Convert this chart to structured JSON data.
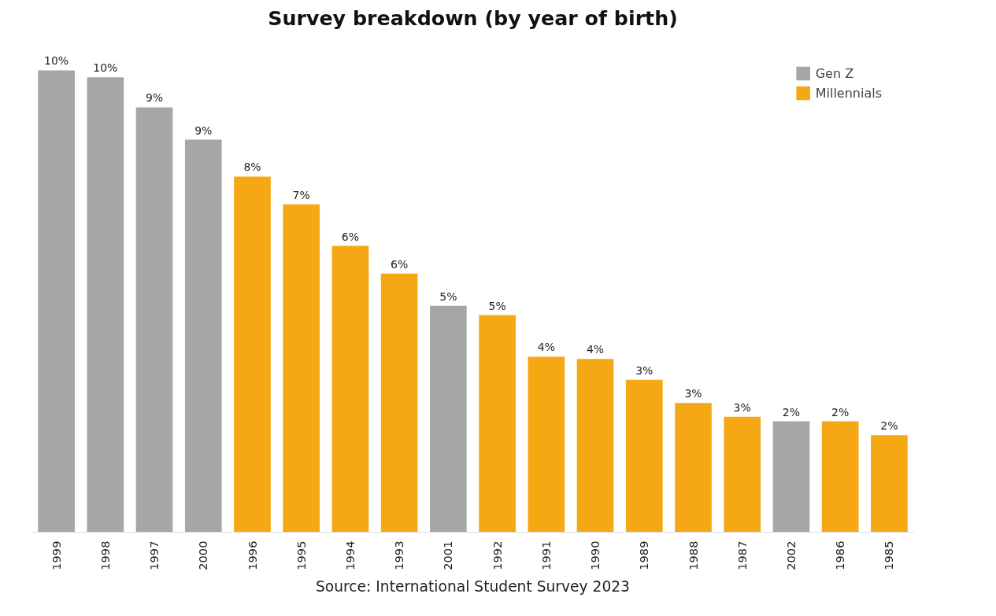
{
  "chart_data": {
    "type": "bar",
    "title": "Survey breakdown (by year of birth)",
    "categories": [
      "1999",
      "1998",
      "1997",
      "2000",
      "1996",
      "1995",
      "1994",
      "1993",
      "2001",
      "1992",
      "1991",
      "1990",
      "1989",
      "1988",
      "1987",
      "2002",
      "1986",
      "1985"
    ],
    "series": [
      {
        "name": "Gen Z",
        "color": "#a6a6a5",
        "values": [
          10.0,
          9.85,
          9.2,
          8.5,
          null,
          null,
          null,
          null,
          4.9,
          null,
          null,
          null,
          null,
          null,
          null,
          2.4,
          null,
          null
        ],
        "value_labels": [
          "10%",
          "10%",
          "9%",
          "9%",
          null,
          null,
          null,
          null,
          "5%",
          null,
          null,
          null,
          null,
          null,
          null,
          "2%",
          null,
          null
        ]
      },
      {
        "name": "Millennials",
        "color": "#f5a814",
        "values": [
          null,
          null,
          null,
          null,
          7.7,
          7.1,
          6.2,
          5.6,
          null,
          4.7,
          3.8,
          3.75,
          3.3,
          2.8,
          2.5,
          null,
          2.4,
          2.1
        ],
        "value_labels": [
          null,
          null,
          null,
          null,
          "8%",
          "7%",
          "6%",
          "6%",
          null,
          "5%",
          "4%",
          "4%",
          "3%",
          "3%",
          "3%",
          null,
          "2%",
          "2%"
        ]
      }
    ],
    "legend": "top right",
    "grid": false,
    "annotations": [
      "Source: International Student Survey 2023"
    ]
  }
}
